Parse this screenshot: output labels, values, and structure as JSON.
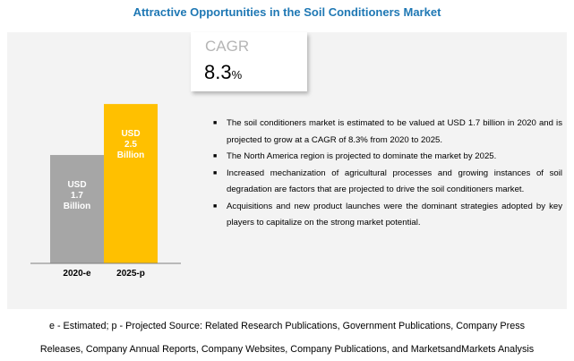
{
  "title": "Attractive Opportunities in the Soil Conditioners Market",
  "cagr": {
    "label": "CAGR",
    "value": "8.3",
    "unit": "%"
  },
  "chart_data": {
    "type": "bar",
    "categories": [
      "2020-e",
      "2025-p"
    ],
    "values": [
      1.7,
      2.5
    ],
    "data_labels": [
      [
        "USD",
        "1.7",
        "Billion"
      ],
      [
        "USD",
        "2.5",
        "Billion"
      ]
    ],
    "colors": [
      "#a6a6a6",
      "#ffc000"
    ],
    "ylim": [
      0,
      2.6
    ],
    "grid": false
  },
  "bullets": [
    "The soil conditioners market is estimated to be valued at USD 1.7 billion in 2020 and is projected to grow at a CAGR of 8.3% from 2020 to 2025.",
    "The North America region is projected to dominate the market by 2025.",
    "Increased mechanization of agricultural processes and growing instances of soil degradation are factors that are projected to drive the soil conditioners market.",
    "Acquisitions and new product launches were the dominant strategies adopted by key players to capitalize on the strong market potential."
  ],
  "footer": {
    "line1": "e - Estimated;  p - Projected Source: Related Research Publications, Government Publications, Company Press",
    "line2": "Releases, Company Annual Reports, Company Websites, Company Publications, and MarketsandMarkets Analysis"
  }
}
